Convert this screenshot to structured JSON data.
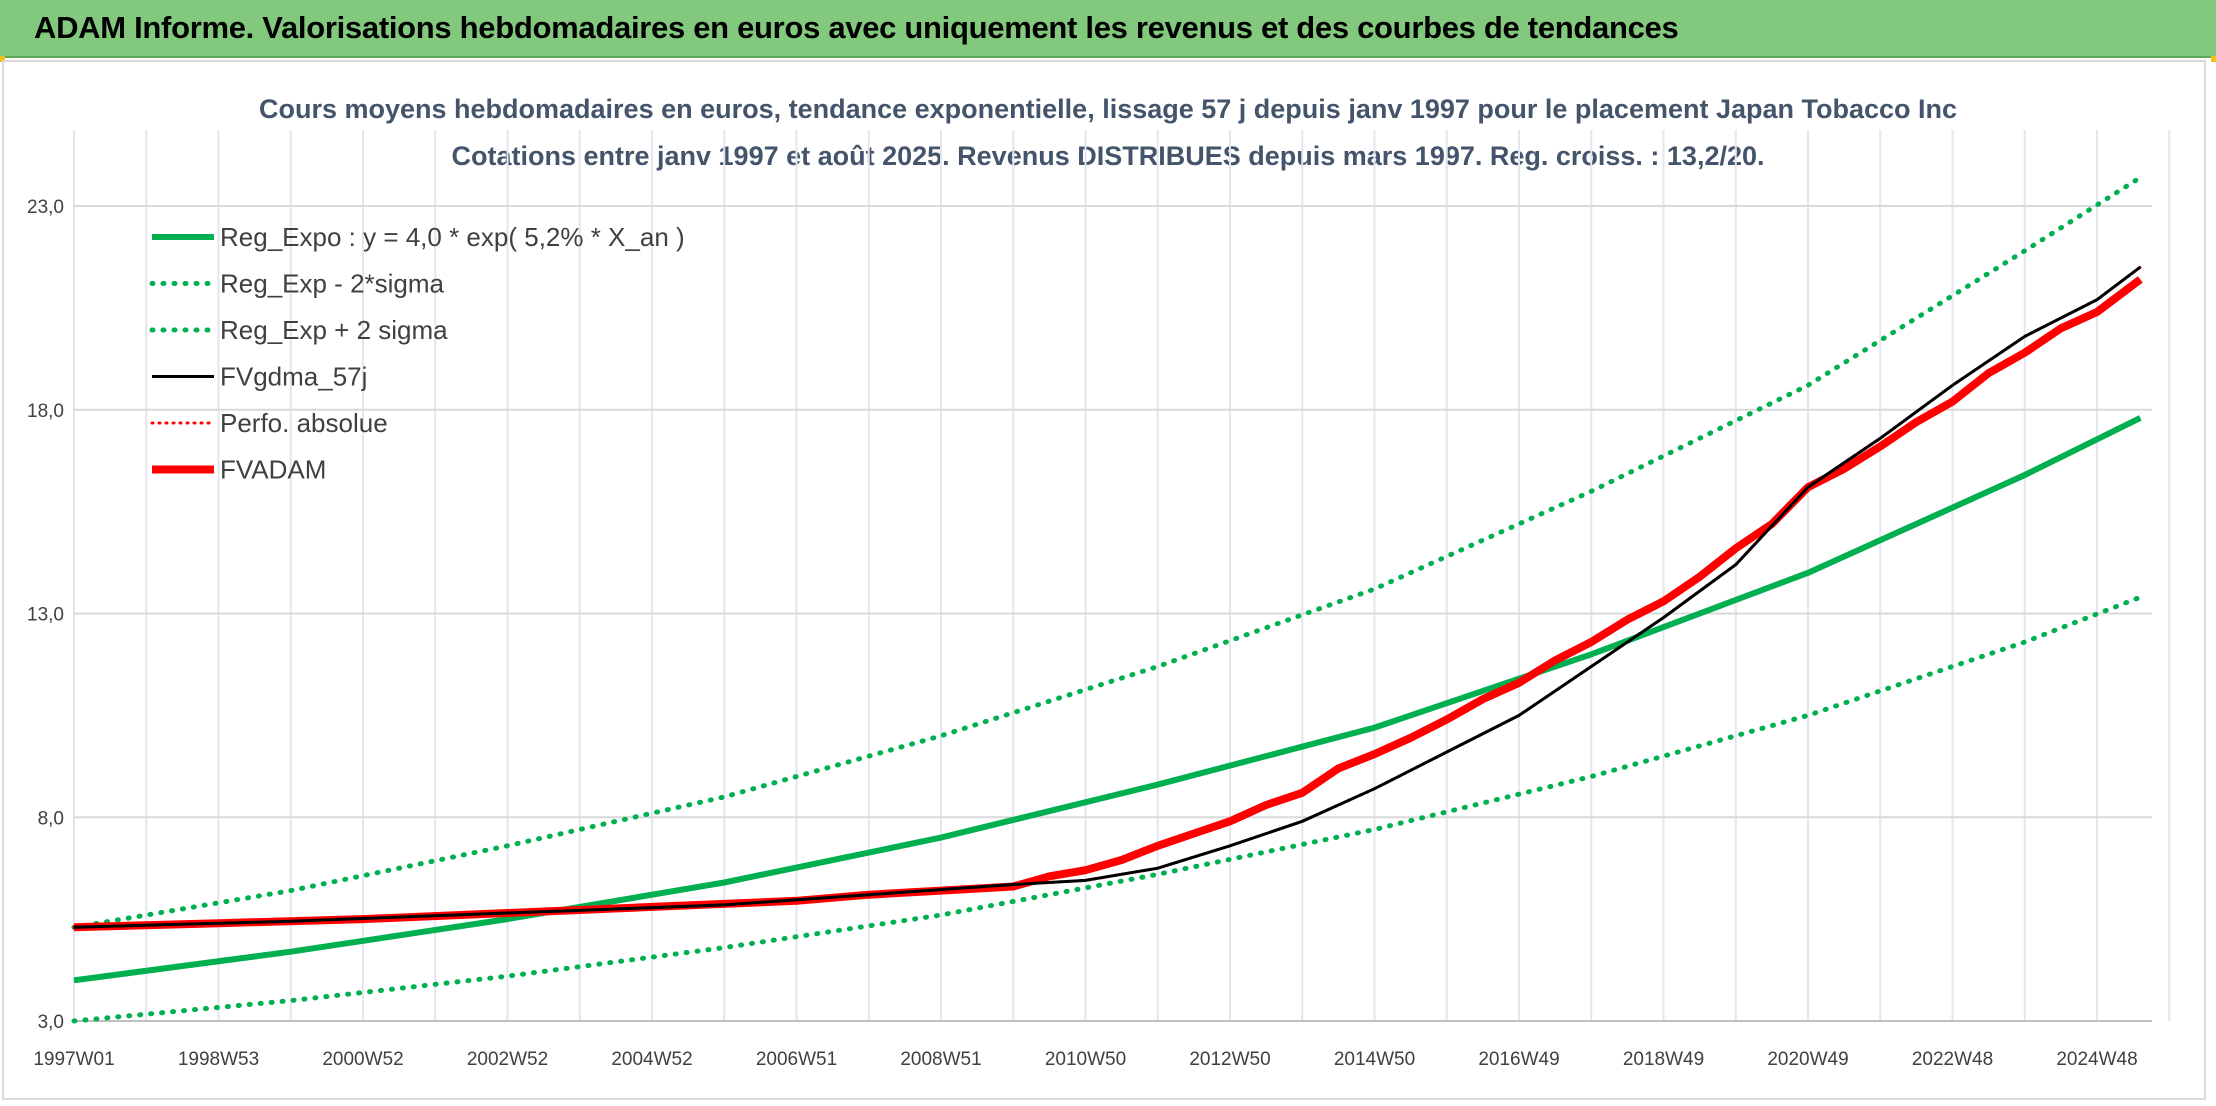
{
  "banner": {
    "title": "ADAM Informe. Valorisations hebdomadaires en euros avec uniquement les revenus et des courbes de tendances"
  },
  "colors": {
    "banner_bg": "#82c97d",
    "trend_green": "#00b050",
    "adam_red": "#ff0000",
    "fv_black": "#000000",
    "title_gray": "#44546a"
  },
  "chart_data": {
    "type": "line",
    "title": "Cours moyens hebdomadaires en euros, tendance exponentielle, lissage 57 j depuis janv 1997 pour le placement Japan Tobacco Inc",
    "subtitle": "Cotations entre janv 1997 et août 2025. Revenus DISTRIBUES depuis mars 1997. Reg. croiss. : 13,2/20.",
    "xlabel": "",
    "ylabel": "",
    "x_range": [
      1997.0,
      2025.6
    ],
    "ylim": [
      3.0,
      25.0
    ],
    "y_ticks": [
      {
        "value": 3.0,
        "label": "3,0"
      },
      {
        "value": 8.0,
        "label": "8,0"
      },
      {
        "value": 13.0,
        "label": "13,0"
      },
      {
        "value": 18.0,
        "label": "18,0"
      },
      {
        "value": 23.0,
        "label": "23,0"
      }
    ],
    "x_ticks": [
      {
        "value": 1997.0,
        "label": "1997W01"
      },
      {
        "value": 1999.0,
        "label": "1998W53"
      },
      {
        "value": 2001.0,
        "label": "2000W52"
      },
      {
        "value": 2003.0,
        "label": "2002W52"
      },
      {
        "value": 2005.0,
        "label": "2004W52"
      },
      {
        "value": 2007.0,
        "label": "2006W51"
      },
      {
        "value": 2009.0,
        "label": "2008W51"
      },
      {
        "value": 2011.0,
        "label": "2010W50"
      },
      {
        "value": 2013.0,
        "label": "2012W50"
      },
      {
        "value": 2015.0,
        "label": "2014W50"
      },
      {
        "value": 2017.0,
        "label": "2016W49"
      },
      {
        "value": 2019.0,
        "label": "2018W49"
      },
      {
        "value": 2021.0,
        "label": "2020W49"
      },
      {
        "value": 2023.0,
        "label": "2022W48"
      },
      {
        "value": 2025.0,
        "label": "2024W48"
      }
    ],
    "grid": true,
    "legend_position": "top-left",
    "series": [
      {
        "name": "Reg_Expo : y = 4,0 * exp( 5,2% *  X_an )",
        "style": "solid",
        "color": "#00b050",
        "x": [
          1997,
          2000,
          2003,
          2006,
          2009,
          2012,
          2015,
          2018,
          2021,
          2024,
          2025.6
        ],
        "y": [
          4.0,
          4.7,
          5.5,
          6.4,
          7.5,
          8.8,
          10.2,
          12.0,
          14.0,
          16.4,
          17.8
        ]
      },
      {
        "name": "Reg_Exp - 2*sigma",
        "style": "dotted",
        "color": "#00b050",
        "x": [
          1997,
          2000,
          2003,
          2006,
          2009,
          2012,
          2015,
          2018,
          2021,
          2024,
          2025.6
        ],
        "y": [
          3.0,
          3.5,
          4.1,
          4.8,
          5.6,
          6.6,
          7.7,
          9.0,
          10.5,
          12.3,
          13.4
        ]
      },
      {
        "name": "Reg_Exp + 2 sigma",
        "style": "dotted",
        "color": "#00b050",
        "x": [
          1997,
          2000,
          2003,
          2006,
          2009,
          2012,
          2015,
          2018,
          2021,
          2024,
          2025.6
        ],
        "y": [
          5.3,
          6.2,
          7.3,
          8.5,
          10.0,
          11.7,
          13.6,
          16.0,
          18.6,
          21.9,
          23.7
        ]
      },
      {
        "name": "FVgdma_57j",
        "style": "solid-thin",
        "color": "#000000",
        "x": [
          1997,
          2000,
          2003,
          2006,
          2008,
          2010,
          2011,
          2012,
          2013,
          2014,
          2015,
          2016,
          2017,
          2018,
          2019,
          2020,
          2021,
          2022,
          2023,
          2024,
          2025,
          2025.6
        ],
        "y": [
          5.3,
          5.45,
          5.65,
          5.85,
          6.1,
          6.35,
          6.45,
          6.75,
          7.3,
          7.9,
          8.7,
          9.6,
          10.5,
          11.7,
          12.9,
          14.2,
          16.1,
          17.3,
          18.6,
          19.8,
          20.7,
          21.5
        ]
      },
      {
        "name": "Perfo. absolue",
        "style": "dotted",
        "color": "#ff0000",
        "x": [
          1997,
          2000,
          2003,
          2006,
          2008,
          2010,
          2011,
          2012,
          2013,
          2014,
          2015,
          2016,
          2017,
          2018,
          2019,
          2020,
          2021,
          2022,
          2023,
          2024,
          2025,
          2025.6
        ],
        "y": [
          5.3,
          5.45,
          5.65,
          5.85,
          6.1,
          6.35,
          6.45,
          6.75,
          7.3,
          7.9,
          8.7,
          9.6,
          10.5,
          11.7,
          12.9,
          14.2,
          16.1,
          17.3,
          18.6,
          19.8,
          20.7,
          21.5
        ]
      },
      {
        "name": "FVADAM",
        "style": "solid-thick",
        "color": "#ff0000",
        "x": [
          1997,
          1999,
          2001,
          2003,
          2005,
          2007,
          2008,
          2009,
          2010,
          2010.5,
          2011,
          2011.5,
          2012,
          2012.5,
          2013,
          2013.5,
          2014,
          2014.5,
          2015,
          2015.5,
          2016,
          2016.5,
          2017,
          2017.5,
          2018,
          2018.5,
          2019,
          2019.5,
          2020,
          2020.5,
          2021,
          2021.5,
          2022,
          2022.5,
          2023,
          2023.5,
          2024,
          2024.5,
          2025,
          2025.6
        ],
        "y": [
          5.3,
          5.4,
          5.5,
          5.65,
          5.8,
          5.95,
          6.1,
          6.2,
          6.3,
          6.55,
          6.7,
          6.95,
          7.3,
          7.6,
          7.9,
          8.3,
          8.6,
          9.2,
          9.55,
          9.95,
          10.4,
          10.9,
          11.3,
          11.85,
          12.3,
          12.85,
          13.3,
          13.9,
          14.6,
          15.2,
          16.1,
          16.55,
          17.1,
          17.7,
          18.2,
          18.9,
          19.4,
          20.0,
          20.4,
          21.2
        ]
      }
    ]
  }
}
